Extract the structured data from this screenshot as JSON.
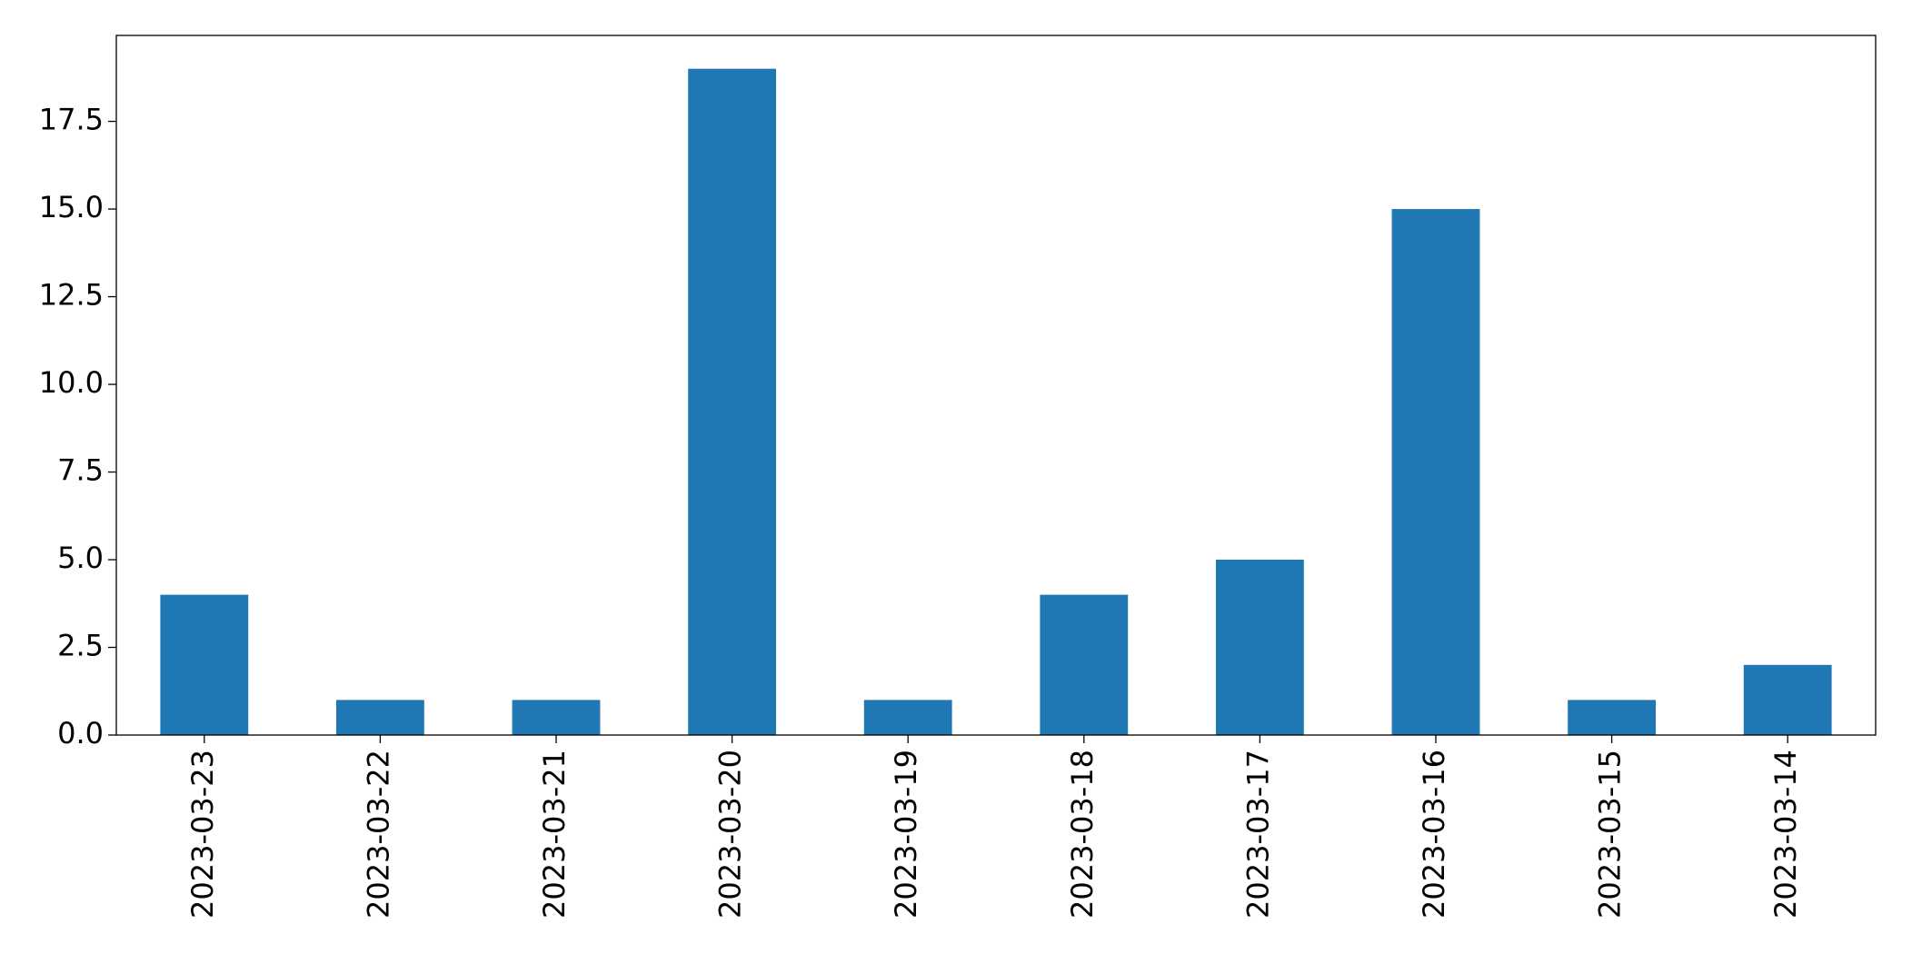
{
  "chart_data": {
    "type": "bar",
    "categories": [
      "2023-03-23",
      "2023-03-22",
      "2023-03-21",
      "2023-03-20",
      "2023-03-19",
      "2023-03-18",
      "2023-03-17",
      "2023-03-16",
      "2023-03-15",
      "2023-03-14"
    ],
    "values": [
      4,
      1,
      1,
      19,
      1,
      4,
      5,
      15,
      1,
      2
    ],
    "color": "#1f77b4",
    "ylim": [
      0,
      19.95
    ],
    "yticks": [
      {
        "value": 0,
        "label": "0.0"
      },
      2.5,
      {
        "value": 5,
        "label": "5.0"
      },
      7.5,
      {
        "value": 10,
        "label": "10.0"
      },
      12.5,
      {
        "value": 15,
        "label": "15.0"
      },
      17.5
    ],
    "grid": false
  }
}
